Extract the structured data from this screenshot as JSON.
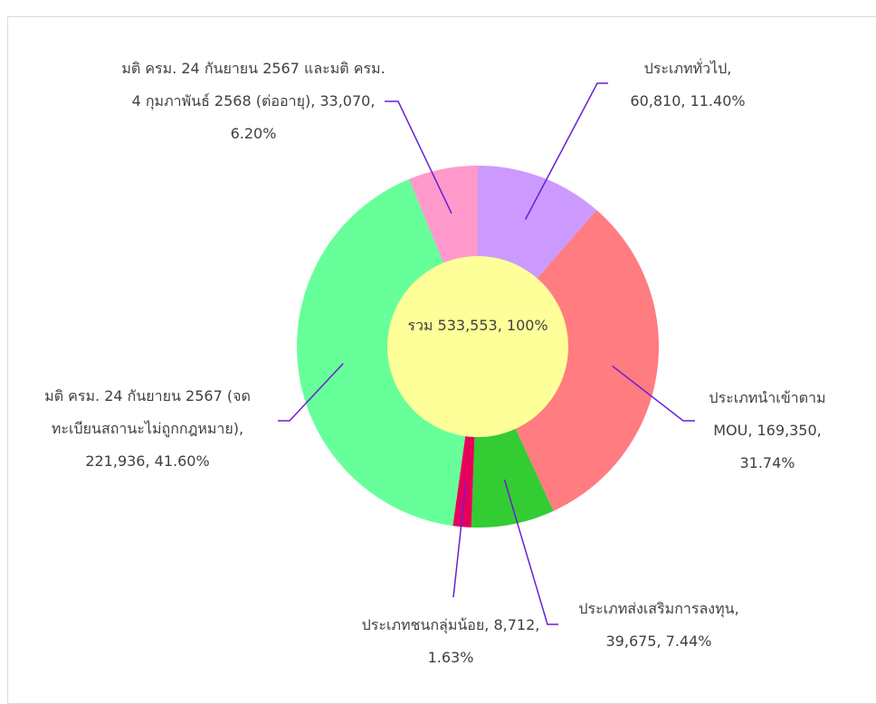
{
  "chart_data": {
    "type": "donut",
    "center_label": "รวม 533,553, 100%",
    "total": 533553,
    "categories": [
      "ประเภททั่วไป",
      "ประเภทนำเข้าตาม MOU",
      "ประเภทส่งเสริมการลงทุน",
      "ประเภทชนกลุ่มน้อย",
      "มติ ครม. 24 กันยายน 2567 (จดทะเบียนสถานะไม่ถูกกฎหมาย)",
      "มติ ครม. 24 กันยายน 2567 และมติ ครม. 4 กุมภาพันธ์ 2568 (ต่ออายุ)"
    ],
    "values": [
      60810,
      169350,
      39675,
      8712,
      221936,
      33070
    ],
    "value_labels": [
      "60,810",
      "169,350",
      "39,675",
      "8,712",
      "221,936",
      "33,070"
    ],
    "percents": [
      11.4,
      31.74,
      7.44,
      1.63,
      41.6,
      6.2
    ],
    "percent_labels": [
      "11.40%",
      "31.74%",
      "7.44%",
      "1.63%",
      "41.60%",
      "6.20%"
    ],
    "colors": [
      "#cc99ff",
      "#ff7c80",
      "#33cc33",
      "#e6005c",
      "#66ff99",
      "#ff99cc"
    ],
    "center_color": "#ffff99",
    "leader_color": "#6a1fd0"
  }
}
